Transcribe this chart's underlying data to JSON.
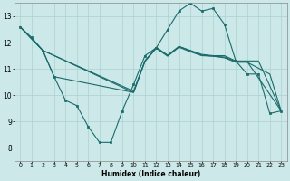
{
  "xlabel": "Humidex (Indice chaleur)",
  "background_color": "#cce8e8",
  "line_color": "#1a6b6b",
  "grid_color": "#aad0d0",
  "xlim": [
    -0.5,
    23.5
  ],
  "ylim": [
    7.5,
    13.5
  ],
  "xticks": [
    0,
    1,
    2,
    3,
    4,
    5,
    6,
    7,
    8,
    9,
    10,
    11,
    12,
    13,
    14,
    15,
    16,
    17,
    18,
    19,
    20,
    21,
    22,
    23
  ],
  "yticks": [
    8,
    9,
    10,
    11,
    12,
    13
  ],
  "line1_x": [
    0,
    1,
    2,
    3,
    4,
    5,
    6,
    7,
    8,
    9,
    10,
    11,
    12,
    13,
    14,
    15,
    16,
    17,
    18,
    19,
    20,
    21,
    22,
    23
  ],
  "line1_y": [
    12.6,
    12.2,
    11.7,
    10.7,
    9.8,
    9.6,
    8.8,
    8.2,
    8.2,
    9.4,
    10.4,
    11.5,
    11.8,
    12.5,
    13.2,
    13.5,
    13.2,
    13.3,
    12.7,
    11.3,
    10.8,
    10.8,
    9.3,
    9.4
  ],
  "line2_x": [
    0,
    2,
    10,
    11,
    12,
    13,
    14,
    15,
    16,
    17,
    18,
    19,
    20,
    21,
    23
  ],
  "line2_y": [
    12.6,
    11.7,
    10.1,
    11.3,
    11.8,
    11.5,
    11.85,
    11.7,
    11.55,
    11.5,
    11.5,
    11.3,
    11.3,
    11.3,
    9.4
  ],
  "line3_x": [
    0,
    2,
    10,
    11,
    12,
    13,
    14,
    15,
    16,
    17,
    18,
    19,
    20,
    23
  ],
  "line3_y": [
    12.6,
    11.7,
    10.15,
    11.3,
    11.82,
    11.52,
    11.85,
    11.68,
    11.52,
    11.48,
    11.45,
    11.28,
    11.28,
    9.4
  ],
  "line4_x": [
    0,
    2,
    3,
    10,
    11,
    12,
    13,
    14,
    15,
    16,
    17,
    18,
    19,
    20,
    22,
    23
  ],
  "line4_y": [
    12.6,
    11.7,
    10.7,
    10.1,
    11.28,
    11.78,
    11.48,
    11.82,
    11.65,
    11.5,
    11.48,
    11.42,
    11.25,
    11.25,
    10.8,
    9.4
  ]
}
